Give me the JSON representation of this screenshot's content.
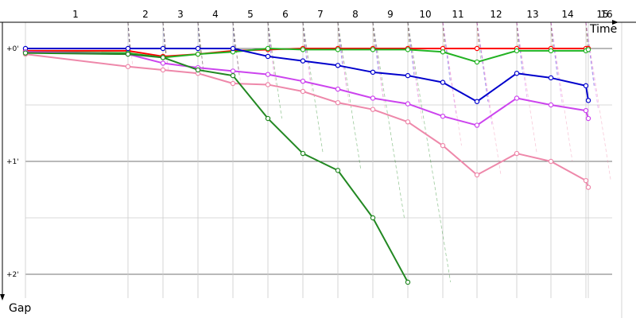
{
  "chart_data": {
    "type": "line",
    "xlabel": "Time",
    "ylabel": "Gap",
    "x_ticks": [
      "1",
      "2",
      "3",
      "4",
      "5",
      "6",
      "7",
      "8",
      "9",
      "10",
      "11",
      "12",
      "13",
      "14",
      "15",
      "16"
    ],
    "y_ticks": [
      "+0'",
      "+1'",
      "+2'"
    ],
    "ylim": [
      0,
      2.2
    ],
    "y_direction": "down",
    "grid": true,
    "series": [
      {
        "color": "#ff0000",
        "points": [
          [
            1,
            0.02
          ],
          [
            2,
            0.02
          ],
          [
            3,
            0.07
          ],
          [
            4,
            0.05
          ],
          [
            5,
            0.02
          ],
          [
            6,
            0.01
          ],
          [
            7,
            0.0
          ],
          [
            8,
            0.0
          ],
          [
            9,
            0.0
          ],
          [
            10,
            0.0
          ],
          [
            11,
            0.0
          ],
          [
            12,
            0.0
          ],
          [
            13,
            0.0
          ],
          [
            14,
            0.0
          ],
          [
            15,
            0.0
          ],
          [
            16,
            0.0
          ]
        ]
      },
      {
        "color": "#22b222",
        "points": [
          [
            1,
            0.03
          ],
          [
            2,
            0.04
          ],
          [
            3,
            0.08
          ],
          [
            4,
            0.05
          ],
          [
            5,
            0.03
          ],
          [
            6,
            0.0
          ],
          [
            7,
            0.01
          ],
          [
            8,
            0.01
          ],
          [
            9,
            0.01
          ],
          [
            10,
            0.01
          ],
          [
            11,
            0.03
          ],
          [
            12,
            0.12
          ],
          [
            13,
            0.02
          ],
          [
            14,
            0.02
          ],
          [
            15,
            0.02
          ],
          [
            16,
            0.01
          ]
        ]
      },
      {
        "color": "#0000cc",
        "points": [
          [
            1,
            0.0
          ],
          [
            2,
            0.0
          ],
          [
            3,
            0.0
          ],
          [
            4,
            0.0
          ],
          [
            5,
            0.0
          ],
          [
            6,
            0.07
          ],
          [
            7,
            0.11
          ],
          [
            8,
            0.15
          ],
          [
            9,
            0.21
          ],
          [
            10,
            0.24
          ],
          [
            11,
            0.3
          ],
          [
            12,
            0.47
          ],
          [
            13,
            0.22
          ],
          [
            14,
            0.26
          ],
          [
            15,
            0.33
          ],
          [
            16,
            0.46
          ]
        ]
      },
      {
        "color": "#cc44ee",
        "points": [
          [
            1,
            0.03
          ],
          [
            2,
            0.05
          ],
          [
            3,
            0.13
          ],
          [
            4,
            0.17
          ],
          [
            5,
            0.2
          ],
          [
            6,
            0.23
          ],
          [
            7,
            0.29
          ],
          [
            8,
            0.36
          ],
          [
            9,
            0.44
          ],
          [
            10,
            0.49
          ],
          [
            11,
            0.6
          ],
          [
            12,
            0.68
          ],
          [
            13,
            0.44
          ],
          [
            14,
            0.5
          ],
          [
            15,
            0.55
          ],
          [
            16,
            0.62
          ]
        ]
      },
      {
        "color": "#ee88aa",
        "points": [
          [
            1,
            0.05
          ],
          [
            2,
            0.16
          ],
          [
            3,
            0.19
          ],
          [
            4,
            0.22
          ],
          [
            5,
            0.31
          ],
          [
            6,
            0.32
          ],
          [
            7,
            0.38
          ],
          [
            8,
            0.48
          ],
          [
            9,
            0.54
          ],
          [
            10,
            0.65
          ],
          [
            11,
            0.86
          ],
          [
            12,
            1.12
          ],
          [
            13,
            0.93
          ],
          [
            14,
            1.0
          ],
          [
            15,
            1.17
          ],
          [
            16,
            1.23
          ]
        ]
      },
      {
        "color": "#228822",
        "points": [
          [
            1,
            0.04
          ],
          [
            2,
            0.05
          ],
          [
            3,
            0.08
          ],
          [
            4,
            0.19
          ],
          [
            5,
            0.24
          ],
          [
            6,
            0.62
          ],
          [
            7,
            0.93
          ],
          [
            8,
            1.08
          ],
          [
            9,
            1.5
          ],
          [
            10,
            2.07
          ]
        ]
      }
    ]
  }
}
